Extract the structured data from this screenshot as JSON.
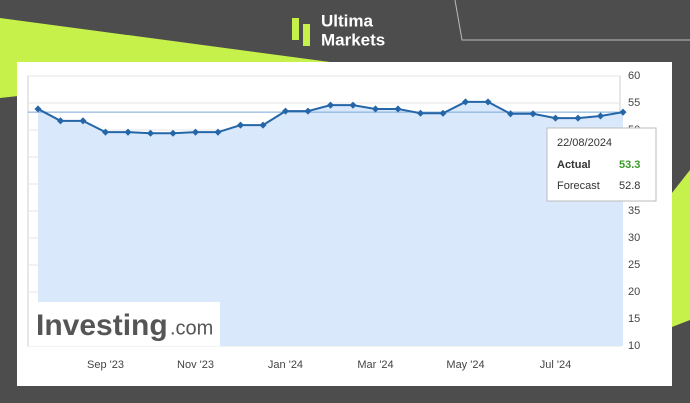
{
  "branding": {
    "brand_line1": "Ultima",
    "brand_line2": "Markets",
    "watermark_main": "Investing",
    "watermark_suffix": ".com"
  },
  "chart_data": {
    "type": "line",
    "categories": [
      null,
      null,
      null,
      "Sep '23",
      null,
      null,
      null,
      "Nov '23",
      null,
      null,
      null,
      "Jan '24",
      null,
      null,
      null,
      "Mar '24",
      null,
      null,
      null,
      "May '24",
      null,
      null,
      null,
      "Jul '24",
      null,
      null,
      null
    ],
    "series": [
      {
        "name": "Actual",
        "color": "#2466a8",
        "values": [
          53.9,
          51.7,
          51.7,
          49.6,
          49.6,
          49.4,
          49.4,
          49.6,
          49.6,
          50.9,
          50.9,
          53.5,
          53.5,
          54.6,
          54.6,
          53.9,
          53.9,
          53.1,
          53.1,
          55.2,
          55.2,
          53.0,
          53.0,
          52.2,
          52.2,
          52.6,
          53.3
        ]
      }
    ],
    "ylim": [
      10,
      60
    ],
    "yticks": [
      10,
      15,
      20,
      25,
      30,
      35,
      40,
      45,
      50,
      55,
      60
    ],
    "grid": true,
    "tooltip": {
      "date": "22/08/2024",
      "actual_label": "Actual",
      "actual": 53.3,
      "forecast_label": "Forecast",
      "forecast": 52.8
    }
  }
}
